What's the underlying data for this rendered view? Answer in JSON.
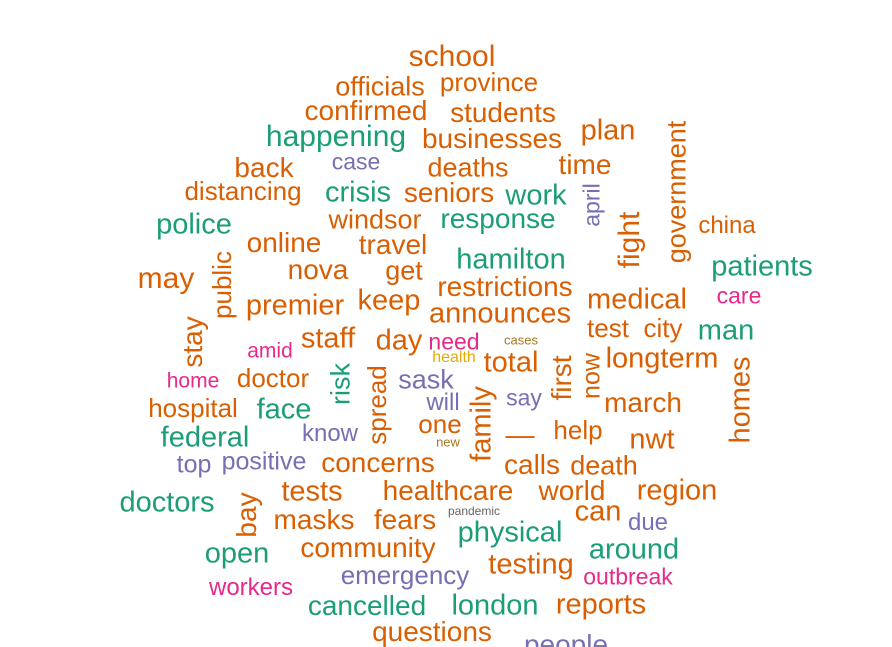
{
  "palette": {
    "orange": "#d95f02",
    "green": "#1b9e77",
    "purple": "#7570b3",
    "pink": "#e7298a",
    "gold": "#e6ab02",
    "brown": "#a6761d",
    "gray": "#666666"
  },
  "words": [
    {
      "text": "school",
      "color": "orange",
      "size": 30,
      "rotated": false
    },
    {
      "text": "officials",
      "color": "orange",
      "size": 27,
      "rotated": false
    },
    {
      "text": "province",
      "color": "orange",
      "size": 26,
      "rotated": false
    },
    {
      "text": "confirmed",
      "color": "orange",
      "size": 28,
      "rotated": false
    },
    {
      "text": "students",
      "color": "orange",
      "size": 28,
      "rotated": false
    },
    {
      "text": "happening",
      "color": "green",
      "size": 30,
      "rotated": false
    },
    {
      "text": "businesses",
      "color": "orange",
      "size": 28,
      "rotated": false
    },
    {
      "text": "plan",
      "color": "orange",
      "size": 29,
      "rotated": false
    },
    {
      "text": "government",
      "color": "orange",
      "size": 27,
      "rotated": true
    },
    {
      "text": "back",
      "color": "orange",
      "size": 28,
      "rotated": false
    },
    {
      "text": "case",
      "color": "purple",
      "size": 23,
      "rotated": false
    },
    {
      "text": "deaths",
      "color": "orange",
      "size": 27,
      "rotated": false
    },
    {
      "text": "time",
      "color": "orange",
      "size": 28,
      "rotated": false
    },
    {
      "text": "distancing",
      "color": "orange",
      "size": 26,
      "rotated": false
    },
    {
      "text": "crisis",
      "color": "green",
      "size": 29,
      "rotated": false
    },
    {
      "text": "seniors",
      "color": "orange",
      "size": 28,
      "rotated": false
    },
    {
      "text": "work",
      "color": "green",
      "size": 29,
      "rotated": false
    },
    {
      "text": "april",
      "color": "purple",
      "size": 23,
      "rotated": true
    },
    {
      "text": "police",
      "color": "green",
      "size": 29,
      "rotated": false
    },
    {
      "text": "windsor",
      "color": "orange",
      "size": 27,
      "rotated": false
    },
    {
      "text": "response",
      "color": "green",
      "size": 28,
      "rotated": false
    },
    {
      "text": "fight",
      "color": "orange",
      "size": 30,
      "rotated": true
    },
    {
      "text": "china",
      "color": "orange",
      "size": 24,
      "rotated": false
    },
    {
      "text": "online",
      "color": "orange",
      "size": 28,
      "rotated": false
    },
    {
      "text": "travel",
      "color": "orange",
      "size": 28,
      "rotated": false
    },
    {
      "text": "public",
      "color": "orange",
      "size": 26,
      "rotated": true
    },
    {
      "text": "hamilton",
      "color": "green",
      "size": 29,
      "rotated": false
    },
    {
      "text": "patients",
      "color": "green",
      "size": 29,
      "rotated": false
    },
    {
      "text": "may",
      "color": "orange",
      "size": 30,
      "rotated": false
    },
    {
      "text": "nova",
      "color": "orange",
      "size": 28,
      "rotated": false
    },
    {
      "text": "get",
      "color": "orange",
      "size": 27,
      "rotated": false
    },
    {
      "text": "restrictions",
      "color": "orange",
      "size": 28,
      "rotated": false
    },
    {
      "text": "care",
      "color": "pink",
      "size": 23,
      "rotated": false
    },
    {
      "text": "premier",
      "color": "orange",
      "size": 29,
      "rotated": false
    },
    {
      "text": "keep",
      "color": "orange",
      "size": 29,
      "rotated": false
    },
    {
      "text": "medical",
      "color": "orange",
      "size": 29,
      "rotated": false
    },
    {
      "text": "announces",
      "color": "orange",
      "size": 29,
      "rotated": false
    },
    {
      "text": "stay",
      "color": "orange",
      "size": 28,
      "rotated": true
    },
    {
      "text": "test",
      "color": "orange",
      "size": 26,
      "rotated": false
    },
    {
      "text": "city",
      "color": "orange",
      "size": 26,
      "rotated": false
    },
    {
      "text": "man",
      "color": "green",
      "size": 29,
      "rotated": false
    },
    {
      "text": "staff",
      "color": "orange",
      "size": 29,
      "rotated": false
    },
    {
      "text": "day",
      "color": "orange",
      "size": 29,
      "rotated": false
    },
    {
      "text": "need",
      "color": "pink",
      "size": 23,
      "rotated": false
    },
    {
      "text": "cases",
      "color": "brown",
      "size": 13,
      "rotated": false
    },
    {
      "text": "amid",
      "color": "pink",
      "size": 21,
      "rotated": false
    },
    {
      "text": "health",
      "color": "gold",
      "size": 16,
      "rotated": false
    },
    {
      "text": "total",
      "color": "orange",
      "size": 29,
      "rotated": false
    },
    {
      "text": "first",
      "color": "orange",
      "size": 28,
      "rotated": true
    },
    {
      "text": "now",
      "color": "orange",
      "size": 25,
      "rotated": true
    },
    {
      "text": "longterm",
      "color": "orange",
      "size": 29,
      "rotated": false
    },
    {
      "text": "homes",
      "color": "orange",
      "size": 29,
      "rotated": true
    },
    {
      "text": "home",
      "color": "pink",
      "size": 21,
      "rotated": false
    },
    {
      "text": "doctor",
      "color": "orange",
      "size": 26,
      "rotated": false
    },
    {
      "text": "risk",
      "color": "green",
      "size": 27,
      "rotated": true
    },
    {
      "text": "spread",
      "color": "orange",
      "size": 26,
      "rotated": true
    },
    {
      "text": "sask",
      "color": "purple",
      "size": 27,
      "rotated": false
    },
    {
      "text": "say",
      "color": "purple",
      "size": 23,
      "rotated": false
    },
    {
      "text": "march",
      "color": "orange",
      "size": 28,
      "rotated": false
    },
    {
      "text": "hospital",
      "color": "orange",
      "size": 26,
      "rotated": false
    },
    {
      "text": "face",
      "color": "green",
      "size": 29,
      "rotated": false
    },
    {
      "text": "will",
      "color": "purple",
      "size": 24,
      "rotated": false
    },
    {
      "text": "family",
      "color": "orange",
      "size": 29,
      "rotated": true
    },
    {
      "text": "one",
      "color": "orange",
      "size": 26,
      "rotated": false
    },
    {
      "text": "help",
      "color": "orange",
      "size": 26,
      "rotated": false
    },
    {
      "text": "federal",
      "color": "green",
      "size": 29,
      "rotated": false
    },
    {
      "text": "know",
      "color": "purple",
      "size": 24,
      "rotated": false
    },
    {
      "text": "—",
      "color": "orange",
      "size": 29,
      "rotated": false
    },
    {
      "text": "nwt",
      "color": "orange",
      "size": 29,
      "rotated": false
    },
    {
      "text": "new",
      "color": "brown",
      "size": 13,
      "rotated": false
    },
    {
      "text": "top",
      "color": "purple",
      "size": 25,
      "rotated": false
    },
    {
      "text": "positive",
      "color": "purple",
      "size": 25,
      "rotated": false
    },
    {
      "text": "concerns",
      "color": "orange",
      "size": 28,
      "rotated": false
    },
    {
      "text": "calls",
      "color": "orange",
      "size": 28,
      "rotated": false
    },
    {
      "text": "death",
      "color": "orange",
      "size": 27,
      "rotated": false
    },
    {
      "text": "doctors",
      "color": "green",
      "size": 29,
      "rotated": false
    },
    {
      "text": "tests",
      "color": "orange",
      "size": 29,
      "rotated": false
    },
    {
      "text": "healthcare",
      "color": "orange",
      "size": 28,
      "rotated": false
    },
    {
      "text": "world",
      "color": "orange",
      "size": 28,
      "rotated": false
    },
    {
      "text": "region",
      "color": "orange",
      "size": 29,
      "rotated": false
    },
    {
      "text": "bay",
      "color": "orange",
      "size": 28,
      "rotated": true
    },
    {
      "text": "pandemic",
      "color": "gray",
      "size": 12,
      "rotated": false
    },
    {
      "text": "masks",
      "color": "orange",
      "size": 28,
      "rotated": false
    },
    {
      "text": "fears",
      "color": "orange",
      "size": 28,
      "rotated": false
    },
    {
      "text": "can",
      "color": "orange",
      "size": 29,
      "rotated": false
    },
    {
      "text": "due",
      "color": "purple",
      "size": 24,
      "rotated": false
    },
    {
      "text": "physical",
      "color": "green",
      "size": 29,
      "rotated": false
    },
    {
      "text": "open",
      "color": "green",
      "size": 29,
      "rotated": false
    },
    {
      "text": "community",
      "color": "orange",
      "size": 28,
      "rotated": false
    },
    {
      "text": "around",
      "color": "green",
      "size": 29,
      "rotated": false
    },
    {
      "text": "testing",
      "color": "orange",
      "size": 29,
      "rotated": false
    },
    {
      "text": "emergency",
      "color": "purple",
      "size": 26,
      "rotated": false
    },
    {
      "text": "outbreak",
      "color": "pink",
      "size": 23,
      "rotated": false
    },
    {
      "text": "workers",
      "color": "pink",
      "size": 24,
      "rotated": false
    },
    {
      "text": "cancelled",
      "color": "green",
      "size": 28,
      "rotated": false
    },
    {
      "text": "london",
      "color": "green",
      "size": 29,
      "rotated": false
    },
    {
      "text": "reports",
      "color": "orange",
      "size": 29,
      "rotated": false
    },
    {
      "text": "questions",
      "color": "orange",
      "size": 28,
      "rotated": false
    },
    {
      "text": "people",
      "color": "purple",
      "size": 28,
      "rotated": false
    }
  ]
}
